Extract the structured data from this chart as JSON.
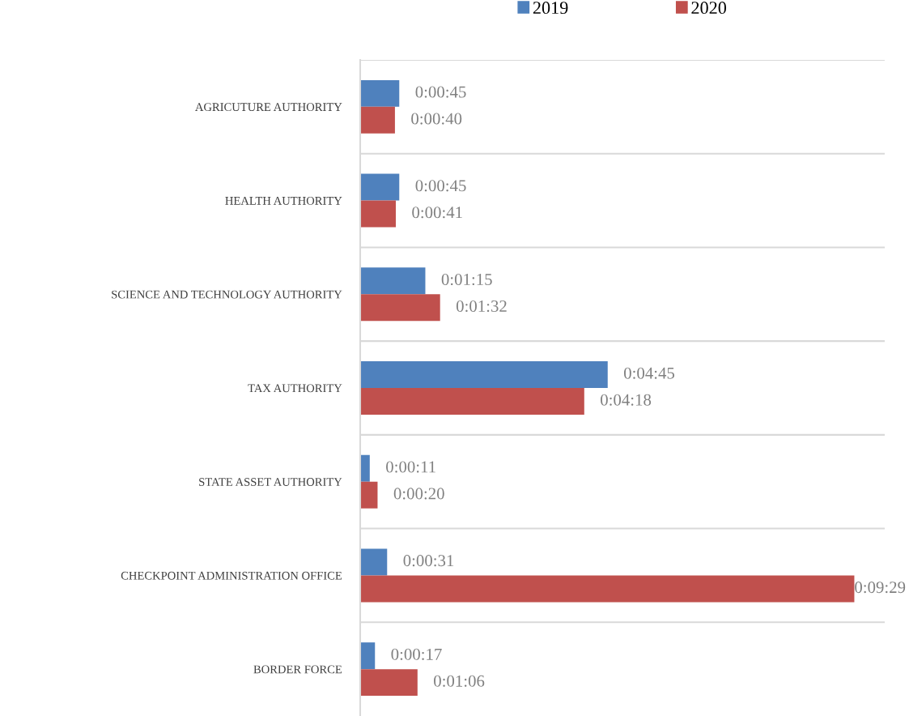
{
  "chart_data": {
    "type": "bar",
    "orientation": "horizontal",
    "categories": [
      "AGRICUTURE AUTHORITY",
      "HEALTH AUTHORITY",
      "SCIENCE AND TECHNOLOGY AUTHORITY",
      "TAX AUTHORITY",
      "STATE ASSET AUTHORITY",
      "CHECKPOINT ADMINISTRATION OFFICE",
      "BORDER FORCE"
    ],
    "series": [
      {
        "name": "2019",
        "color": "#4f81bd",
        "values": [
          45,
          45,
          75,
          285,
          11,
          31,
          17
        ],
        "value_labels": [
          "0:00:45",
          "0:00:45",
          "0:01:15",
          "0:04:45",
          "0:00:11",
          "0:00:31",
          "0:00:17"
        ]
      },
      {
        "name": "2020",
        "color": "#c0504d",
        "values": [
          40,
          41,
          92,
          258,
          20,
          569,
          66
        ],
        "value_labels": [
          "0:00:40",
          "0:00:41",
          "0:01:32",
          "0:04:18",
          "0:00:20",
          "0:09:29",
          "0:01:06"
        ]
      }
    ],
    "xlim": [
      0,
      604
    ],
    "grid": "y",
    "legend": "top",
    "tick_labels": "y"
  }
}
